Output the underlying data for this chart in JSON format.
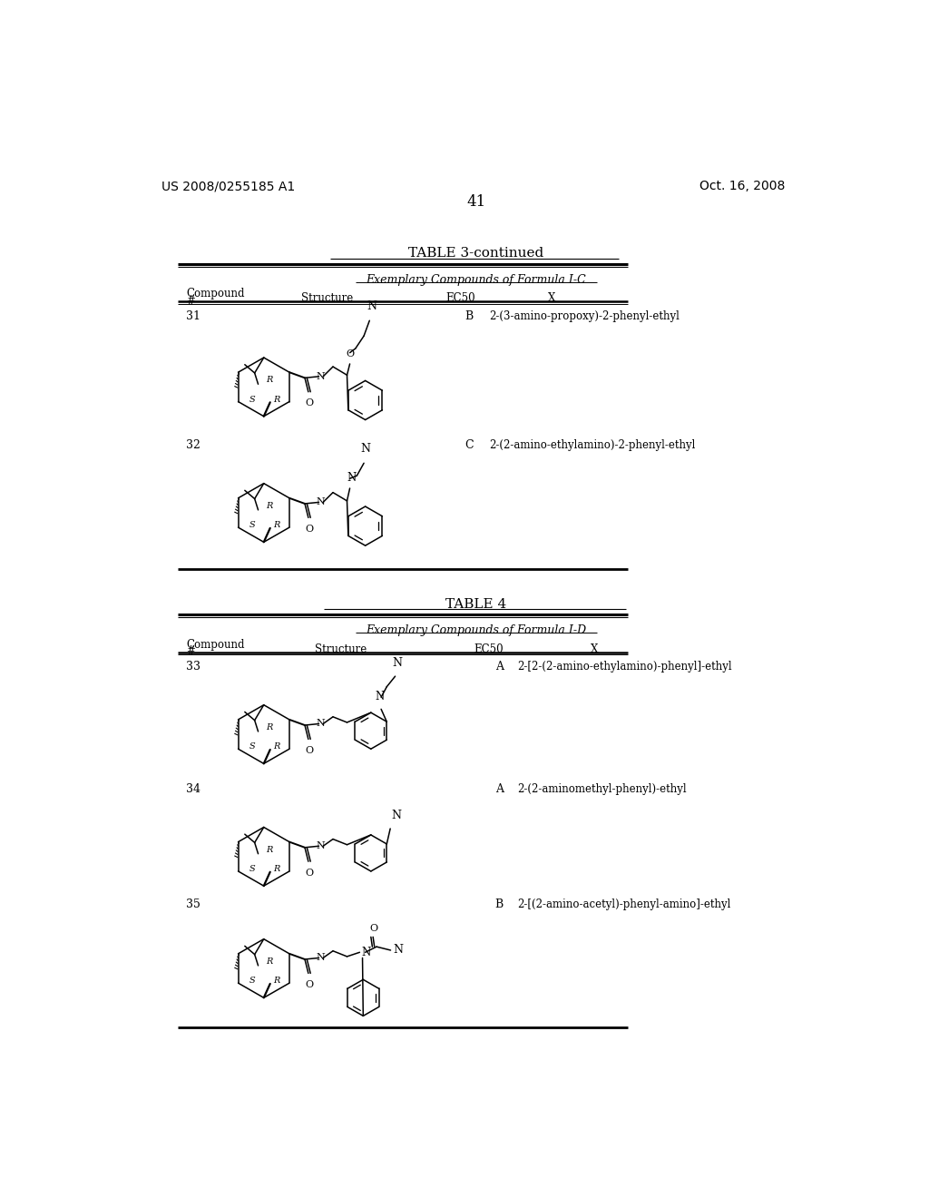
{
  "page_left": "US 2008/0255185 A1",
  "page_right": "Oct. 16, 2008",
  "page_number": "41",
  "table3_title": "TABLE 3-continued",
  "table3_subtitle": "Exemplary Compounds of Formula I-C",
  "table4_title": "TABLE 4",
  "table4_subtitle": "Exemplary Compounds of Formula I-D",
  "bg_color": "#ffffff"
}
